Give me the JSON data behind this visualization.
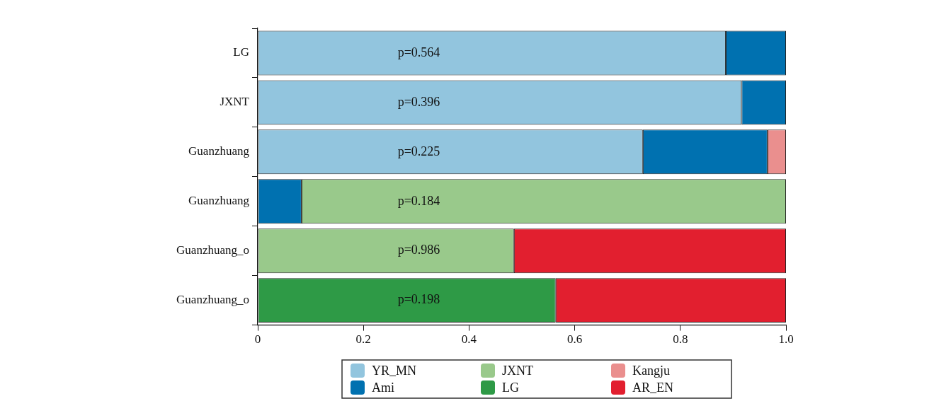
{
  "chart_data": {
    "type": "bar",
    "orientation": "horizontal",
    "stacked": true,
    "categories": [
      "LG",
      "JXNT",
      "Guanzhuang",
      "Guanzhuang",
      "Guanzhuang_o",
      "Guanzhuang_o"
    ],
    "series": [
      {
        "name": "YR_MN",
        "color": "#92c5de",
        "values": [
          0.886,
          0.916,
          0.729,
          null,
          null,
          null
        ]
      },
      {
        "name": "Ami",
        "color": "#0071b0",
        "values": [
          0.114,
          0.084,
          0.236,
          0.083,
          null,
          null
        ]
      },
      {
        "name": "JXNT",
        "color": "#99c98b",
        "values": [
          null,
          null,
          null,
          0.917,
          0.485,
          null
        ]
      },
      {
        "name": "LG",
        "color": "#2e9a46",
        "values": [
          null,
          null,
          null,
          null,
          null,
          0.564
        ]
      },
      {
        "name": "Kangju",
        "color": "#ea8f8e",
        "values": [
          null,
          null,
          0.035,
          null,
          null,
          null
        ]
      },
      {
        "name": "AR_EN",
        "color": "#e21f2f",
        "values": [
          null,
          null,
          null,
          null,
          0.515,
          0.436
        ]
      }
    ],
    "xlim": [
      0,
      1
    ],
    "xticks": [
      0,
      0.2,
      0.4,
      0.6,
      0.8,
      {
        "value": 1,
        "label": "1.0"
      }
    ],
    "annotations": [
      "p=0.564",
      "p=0.396",
      "p=0.225",
      "p=0.184",
      "p=0.986",
      "p=0.198"
    ],
    "grid": false,
    "legend": "bottom"
  }
}
